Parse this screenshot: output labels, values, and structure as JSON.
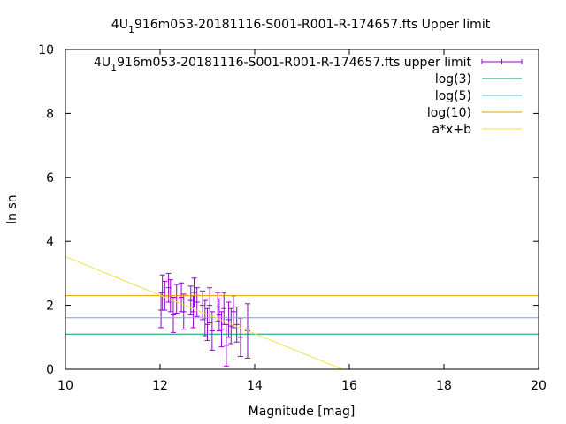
{
  "chart_data": {
    "type": "scatter",
    "title": {
      "prefix": "4U",
      "subscript": "1",
      "rest": "916m053-20181116-S001-R001-R-174657.fts Upper limit"
    },
    "xlabel": "Magnitude [mag]",
    "ylabel": "ln sn",
    "xlim": [
      10,
      20
    ],
    "ylim": [
      0,
      10
    ],
    "xticks": [
      10,
      12,
      14,
      16,
      18,
      20
    ],
    "yticks": [
      0,
      2,
      4,
      6,
      8,
      10
    ],
    "grid": false,
    "legend_position": "top-right",
    "series": [
      {
        "name": {
          "prefix": "4U",
          "subscript": "1",
          "rest": "916m053-20181116-S001-R001-R-174657.fts upper limit"
        },
        "kind": "errorbar",
        "color": "#9400d3",
        "points": [
          {
            "x": 12.02,
            "y": 1.85,
            "err": 0.55
          },
          {
            "x": 12.05,
            "y": 2.4,
            "err": 0.55
          },
          {
            "x": 12.1,
            "y": 2.3,
            "err": 0.45
          },
          {
            "x": 12.18,
            "y": 2.55,
            "err": 0.45
          },
          {
            "x": 12.22,
            "y": 2.3,
            "err": 0.5
          },
          {
            "x": 12.28,
            "y": 1.7,
            "err": 0.55
          },
          {
            "x": 12.35,
            "y": 2.2,
            "err": 0.45
          },
          {
            "x": 12.45,
            "y": 2.25,
            "err": 0.45
          },
          {
            "x": 12.5,
            "y": 1.8,
            "err": 0.55
          },
          {
            "x": 12.65,
            "y": 2.15,
            "err": 0.45
          },
          {
            "x": 12.7,
            "y": 1.8,
            "err": 0.5
          },
          {
            "x": 12.72,
            "y": 2.4,
            "err": 0.45
          },
          {
            "x": 12.78,
            "y": 2.1,
            "err": 0.45
          },
          {
            "x": 12.9,
            "y": 2.0,
            "err": 0.45
          },
          {
            "x": 12.95,
            "y": 1.6,
            "err": 0.55
          },
          {
            "x": 13.0,
            "y": 1.4,
            "err": 0.5
          },
          {
            "x": 13.05,
            "y": 2.0,
            "err": 0.55
          },
          {
            "x": 13.1,
            "y": 1.2,
            "err": 0.6
          },
          {
            "x": 13.22,
            "y": 1.95,
            "err": 0.45
          },
          {
            "x": 13.25,
            "y": 1.7,
            "err": 0.5
          },
          {
            "x": 13.3,
            "y": 1.25,
            "err": 0.55
          },
          {
            "x": 13.35,
            "y": 1.9,
            "err": 0.5
          },
          {
            "x": 13.4,
            "y": 0.75,
            "err": 0.65
          },
          {
            "x": 13.45,
            "y": 1.55,
            "err": 0.55
          },
          {
            "x": 13.5,
            "y": 1.35,
            "err": 0.55
          },
          {
            "x": 13.55,
            "y": 1.8,
            "err": 0.5
          },
          {
            "x": 13.62,
            "y": 1.4,
            "err": 0.55
          },
          {
            "x": 13.7,
            "y": 1.0,
            "err": 0.6
          },
          {
            "x": 13.85,
            "y": 1.2,
            "err": 0.85
          }
        ]
      },
      {
        "name": "log(3)",
        "kind": "hline",
        "y": 1.0986,
        "color": "#009e73"
      },
      {
        "name": "log(5)",
        "kind": "hline",
        "y": 1.6094,
        "color": "#56b4e9"
      },
      {
        "name": "log(10)",
        "kind": "hline",
        "y": 2.3026,
        "color": "#e69f00"
      },
      {
        "name": "a*x+b",
        "kind": "line",
        "x": [
          10,
          15.85
        ],
        "y": [
          3.52,
          0.0
        ],
        "color": "#f0e442"
      }
    ]
  }
}
